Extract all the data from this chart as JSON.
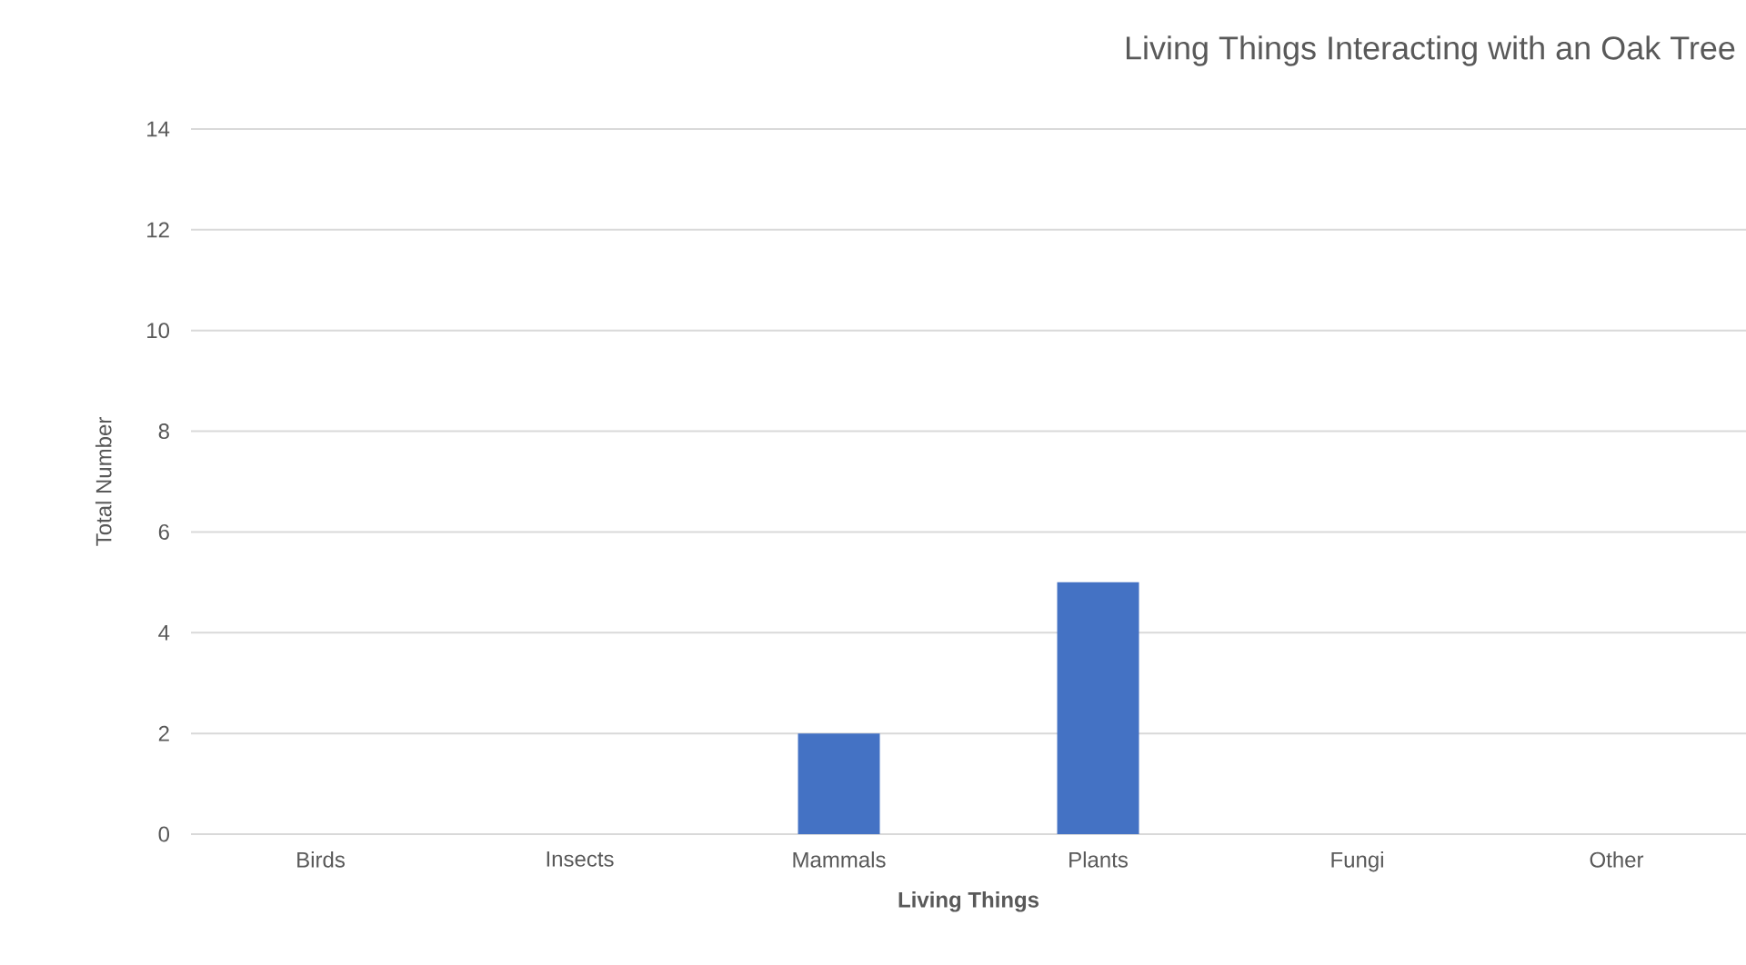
{
  "chart_data": {
    "type": "bar",
    "title": "Living Things Interacting with an Oak Tree",
    "xlabel": "Living Things",
    "ylabel": "Total Number",
    "categories": [
      "Birds",
      "Insects",
      "Mammals",
      "Plants",
      "Fungi",
      "Other"
    ],
    "values": [
      0,
      0,
      2,
      5,
      0,
      0
    ],
    "color": "#4472c4",
    "ylim": [
      0,
      14
    ],
    "yticks": [
      0,
      2,
      4,
      6,
      8,
      10,
      12,
      14
    ],
    "grid": "y"
  }
}
